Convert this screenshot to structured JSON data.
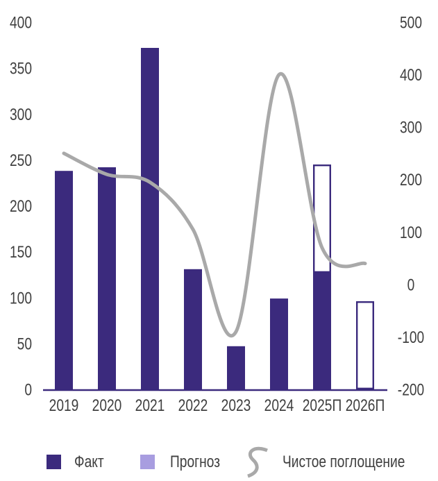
{
  "chart_data": {
    "type": "combo-bar-line",
    "categories": [
      "2019",
      "2020",
      "2021",
      "2022",
      "2023",
      "2024",
      "2025П",
      "2026П"
    ],
    "series": [
      {
        "name": "Факт",
        "type": "bar",
        "style": "solid",
        "axis": "left",
        "values": [
          238,
          242,
          372,
          131,
          47,
          99,
          127,
          0
        ]
      },
      {
        "name": "Прогноз",
        "type": "bar",
        "style": "outline",
        "axis": "left",
        "stacked_on": "Факт",
        "values": [
          0,
          0,
          0,
          0,
          0,
          0,
          118,
          96
        ]
      },
      {
        "name": "Чистое поглощение",
        "type": "line",
        "axis": "right",
        "smooth": true,
        "values": [
          250,
          210,
          195,
          105,
          -90,
          400,
          70,
          40
        ]
      }
    ],
    "left_axis": {
      "min": 0,
      "max": 400,
      "tick_step": 50,
      "ticks": [
        400,
        350,
        300,
        250,
        200,
        150,
        100,
        50,
        0
      ]
    },
    "right_axis": {
      "min": -200,
      "max": 500,
      "tick_step": 100,
      "ticks": [
        500,
        400,
        300,
        200,
        100,
        0,
        -100,
        -200
      ]
    },
    "grid": false,
    "legend_position": "bottom"
  },
  "colors": {
    "fact": "#3B2A7D",
    "forecast_fill": "#FFFFFF",
    "forecast_outline": "#3B2A7D",
    "forecast_legend_swatch": "#A89DE0",
    "line": "#A9A9A9",
    "axis_line": "#3B2A7D",
    "axis_text": "#3F3F3F",
    "background": "#FFFFFF"
  }
}
